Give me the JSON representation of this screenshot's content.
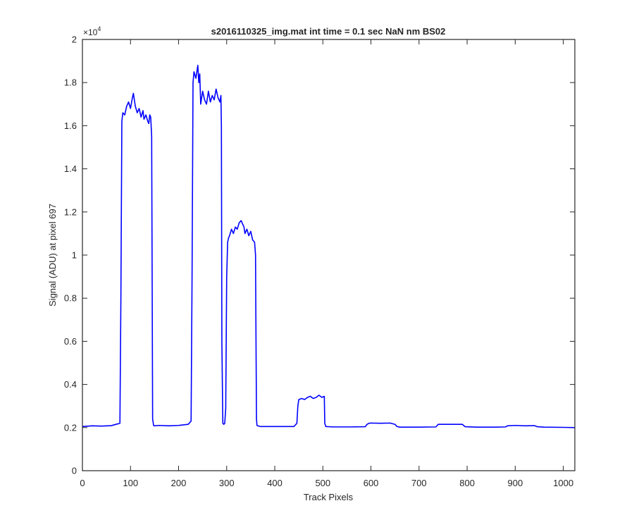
{
  "chart_data": {
    "type": "line",
    "title": "s2016110325_img.mat int time = 0.1 sec  NaN nm BS02",
    "xlabel": "Track Pixels",
    "ylabel": "Signal (ADU) at pixel 697",
    "y_exponent_label": "×10",
    "y_exponent_power": "4",
    "xlim": [
      0,
      1024
    ],
    "ylim": [
      0,
      20000
    ],
    "x_ticks": [
      0,
      100,
      200,
      300,
      400,
      500,
      600,
      700,
      800,
      900,
      1000
    ],
    "x_tick_labels": [
      "0",
      "100",
      "200",
      "300",
      "400",
      "500",
      "600",
      "700",
      "800",
      "900",
      "1000"
    ],
    "y_ticks": [
      0,
      2000,
      4000,
      6000,
      8000,
      10000,
      12000,
      14000,
      16000,
      18000,
      20000
    ],
    "y_tick_labels": [
      "0",
      "0.2",
      "0.4",
      "0.6",
      "0.8",
      "1",
      "1.2",
      "1.4",
      "1.6",
      "1.8",
      "2"
    ],
    "grid": false,
    "line_color": "#0000ff",
    "series": [
      {
        "name": "",
        "x": [
          0,
          20,
          40,
          60,
          78,
          80,
          82,
          84,
          88,
          92,
          96,
          100,
          104,
          106,
          108,
          110,
          114,
          118,
          122,
          126,
          128,
          132,
          136,
          138,
          140,
          142,
          144,
          145,
          146,
          148,
          150,
          160,
          180,
          200,
          220,
          226,
          228,
          230,
          232,
          236,
          240,
          242,
          244,
          246,
          250,
          254,
          258,
          262,
          266,
          270,
          274,
          278,
          282,
          286,
          288,
          289,
          290,
          292,
          294,
          296,
          298,
          300,
          302,
          303,
          304,
          306,
          310,
          314,
          318,
          322,
          326,
          330,
          334,
          336,
          338,
          342,
          346,
          350,
          354,
          358,
          360,
          361,
          362,
          363,
          365,
          370,
          400,
          440,
          446,
          448,
          450,
          456,
          462,
          468,
          474,
          480,
          486,
          492,
          498,
          503,
          504,
          506,
          520,
          560,
          588,
          592,
          596,
          600,
          620,
          640,
          650,
          654,
          660,
          700,
          735,
          740,
          760,
          790,
          796,
          820,
          860,
          880,
          884,
          900,
          920,
          940,
          946,
          960,
          1000,
          1024
        ],
        "y": [
          2050,
          2080,
          2070,
          2090,
          2200,
          8000,
          16200,
          16600,
          16500,
          16900,
          17100,
          16800,
          17300,
          17500,
          17200,
          16900,
          16600,
          16800,
          16400,
          16700,
          16300,
          16500,
          16200,
          16100,
          16500,
          16400,
          15500,
          9000,
          2400,
          2100,
          2080,
          2100,
          2080,
          2100,
          2150,
          2300,
          9000,
          18000,
          18500,
          18200,
          18800,
          18000,
          18400,
          17000,
          17600,
          17200,
          17000,
          17600,
          17100,
          17400,
          17200,
          17700,
          17300,
          17100,
          17400,
          16000,
          6000,
          2200,
          2150,
          2200,
          2900,
          9000,
          10600,
          10700,
          10800,
          10900,
          11200,
          11000,
          11300,
          11200,
          11500,
          11600,
          11400,
          11300,
          11000,
          11200,
          10900,
          11100,
          10700,
          10600,
          10000,
          6000,
          2400,
          2100,
          2080,
          2050,
          2050,
          2050,
          2200,
          3000,
          3300,
          3350,
          3300,
          3400,
          3450,
          3350,
          3400,
          3500,
          3400,
          3450,
          2200,
          2050,
          2030,
          2030,
          2040,
          2150,
          2200,
          2210,
          2200,
          2210,
          2150,
          2050,
          2020,
          2020,
          2030,
          2150,
          2150,
          2150,
          2040,
          2020,
          2020,
          2030,
          2080,
          2100,
          2080,
          2090,
          2040,
          2020,
          2010,
          2000
        ]
      }
    ]
  }
}
